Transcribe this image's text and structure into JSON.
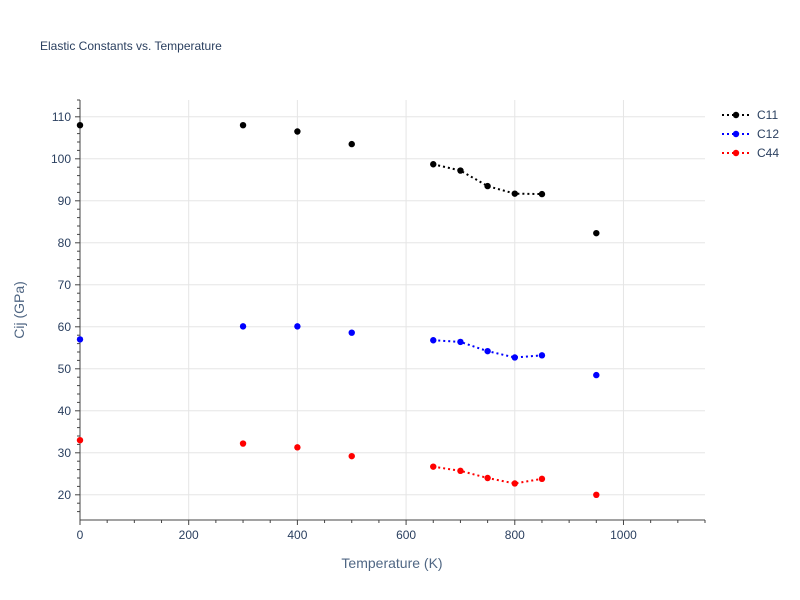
{
  "chart_data": {
    "type": "scatter",
    "title": "Elastic Constants vs. Temperature",
    "xlabel": "Temperature (K)",
    "ylabel": "Cij (GPa)",
    "xlim": [
      0,
      1150
    ],
    "ylim": [
      14,
      114
    ],
    "xticks": [
      0,
      200,
      400,
      600,
      800,
      1000
    ],
    "yticks": [
      20,
      30,
      40,
      50,
      60,
      70,
      80,
      90,
      100,
      110
    ],
    "grid": true,
    "legend_position": "top-right",
    "series": [
      {
        "name": "C11",
        "color": "#000000",
        "points": [
          {
            "x": 0,
            "y": 108
          },
          {
            "x": 300,
            "y": 108
          },
          {
            "x": 400,
            "y": 106.5
          },
          {
            "x": 500,
            "y": 103.5
          },
          {
            "x": 650,
            "y": 98.7
          },
          {
            "x": 700,
            "y": 97.2
          },
          {
            "x": 750,
            "y": 93.5
          },
          {
            "x": 800,
            "y": 91.7
          },
          {
            "x": 850,
            "y": 91.6
          },
          {
            "x": 950,
            "y": 82.3
          }
        ],
        "dotted_segment": [
          650,
          700,
          750,
          800,
          850
        ]
      },
      {
        "name": "C12",
        "color": "#0000ff",
        "points": [
          {
            "x": 0,
            "y": 57
          },
          {
            "x": 300,
            "y": 60.1
          },
          {
            "x": 400,
            "y": 60.1
          },
          {
            "x": 500,
            "y": 58.6
          },
          {
            "x": 650,
            "y": 56.8
          },
          {
            "x": 700,
            "y": 56.4
          },
          {
            "x": 750,
            "y": 54.2
          },
          {
            "x": 800,
            "y": 52.7
          },
          {
            "x": 850,
            "y": 53.2
          },
          {
            "x": 950,
            "y": 48.5
          }
        ],
        "dotted_segment": [
          650,
          700,
          750,
          800,
          850
        ]
      },
      {
        "name": "C44",
        "color": "#ff0000",
        "points": [
          {
            "x": 0,
            "y": 33
          },
          {
            "x": 300,
            "y": 32.2
          },
          {
            "x": 400,
            "y": 31.3
          },
          {
            "x": 500,
            "y": 29.2
          },
          {
            "x": 650,
            "y": 26.7
          },
          {
            "x": 700,
            "y": 25.7
          },
          {
            "x": 750,
            "y": 24
          },
          {
            "x": 800,
            "y": 22.7
          },
          {
            "x": 850,
            "y": 23.8
          },
          {
            "x": 950,
            "y": 20
          }
        ],
        "dotted_segment": [
          650,
          700,
          750,
          800,
          850
        ]
      }
    ]
  },
  "colors": {
    "axis_text": "#2a3f5f",
    "axis_title": "#506784",
    "grid": "#e5e5e5",
    "background": "#ffffff"
  }
}
